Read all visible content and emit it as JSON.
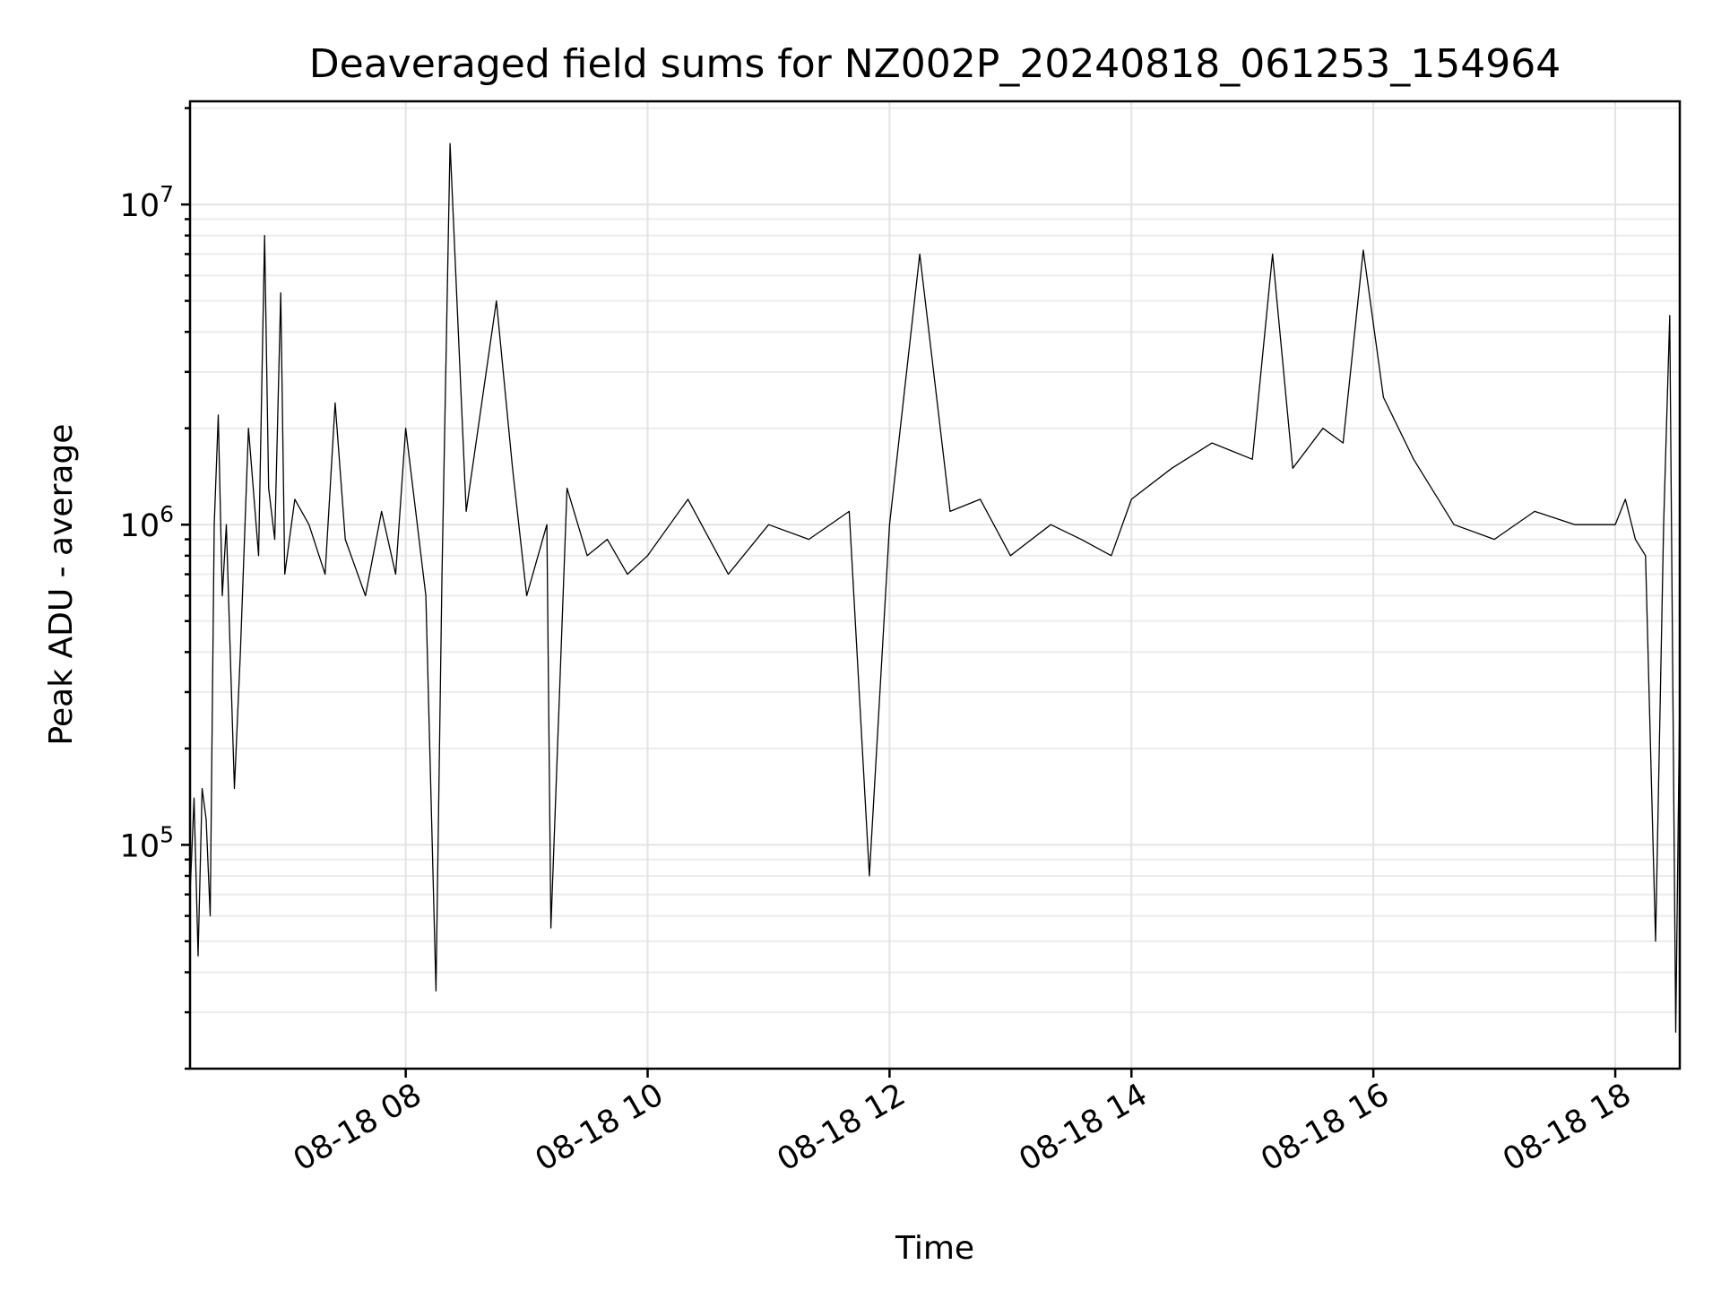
{
  "chart_data": {
    "type": "line",
    "title": "Deaveraged field sums for NZ002P_20240818_061253_154964",
    "xlabel": "Time",
    "ylabel": "Peak ADU - average",
    "yscale": "log",
    "ylim": [
      20000,
      21000000
    ],
    "xlim": [
      "2024-08-18 06:13",
      "2024-08-18 18:32"
    ],
    "grid": true,
    "legend": "none",
    "line_color": "#000000",
    "x_ticks": [
      "08-18 08",
      "08-18 10",
      "08-18 12",
      "08-18 14",
      "08-18 16",
      "08-18 18"
    ],
    "y_ticks": [
      {
        "base": "10",
        "exp": "5",
        "value": 100000
      },
      {
        "base": "10",
        "exp": "6",
        "value": 1000000
      },
      {
        "base": "10",
        "exp": "7",
        "value": 10000000
      }
    ],
    "series": [
      {
        "x": [
          "2024-08-18 06:13",
          "2024-08-18 06:15",
          "2024-08-18 06:17",
          "2024-08-18 06:19",
          "2024-08-18 06:21",
          "2024-08-18 06:23",
          "2024-08-18 06:25",
          "2024-08-18 06:27",
          "2024-08-18 06:29",
          "2024-08-18 06:31",
          "2024-08-18 06:35",
          "2024-08-18 06:38",
          "2024-08-18 06:42",
          "2024-08-18 06:47",
          "2024-08-18 06:50",
          "2024-08-18 06:52",
          "2024-08-18 06:55",
          "2024-08-18 06:58",
          "2024-08-18 07:00",
          "2024-08-18 07:05",
          "2024-08-18 07:12",
          "2024-08-18 07:20",
          "2024-08-18 07:25",
          "2024-08-18 07:30",
          "2024-08-18 07:40",
          "2024-08-18 07:48",
          "2024-08-18 07:55",
          "2024-08-18 08:00",
          "2024-08-18 08:10",
          "2024-08-18 08:15",
          "2024-08-18 08:18",
          "2024-08-18 08:22",
          "2024-08-18 08:30",
          "2024-08-18 08:45",
          "2024-08-18 08:53",
          "2024-08-18 09:00",
          "2024-08-18 09:10",
          "2024-08-18 09:12",
          "2024-08-18 09:20",
          "2024-08-18 09:30",
          "2024-08-18 09:40",
          "2024-08-18 09:50",
          "2024-08-18 10:00",
          "2024-08-18 10:20",
          "2024-08-18 10:40",
          "2024-08-18 11:00",
          "2024-08-18 11:20",
          "2024-08-18 11:40",
          "2024-08-18 11:50",
          "2024-08-18 12:00",
          "2024-08-18 12:15",
          "2024-08-18 12:30",
          "2024-08-18 12:45",
          "2024-08-18 13:00",
          "2024-08-18 13:20",
          "2024-08-18 13:35",
          "2024-08-18 13:50",
          "2024-08-18 14:00",
          "2024-08-18 14:20",
          "2024-08-18 14:40",
          "2024-08-18 15:00",
          "2024-08-18 15:10",
          "2024-08-18 15:20",
          "2024-08-18 15:35",
          "2024-08-18 15:45",
          "2024-08-18 15:55",
          "2024-08-18 16:05",
          "2024-08-18 16:20",
          "2024-08-18 16:40",
          "2024-08-18 17:00",
          "2024-08-18 17:20",
          "2024-08-18 17:40",
          "2024-08-18 18:00",
          "2024-08-18 18:05",
          "2024-08-18 18:10",
          "2024-08-18 18:15",
          "2024-08-18 18:20",
          "2024-08-18 18:24",
          "2024-08-18 18:27",
          "2024-08-18 18:30",
          "2024-08-18 18:32"
        ],
        "y": [
          70000,
          140000,
          45000,
          150000,
          120000,
          60000,
          1000000,
          2200000,
          600000,
          1000000,
          150000,
          400000,
          2000000,
          800000,
          8000000,
          1300000,
          900000,
          5300000,
          700000,
          1200000,
          1000000,
          700000,
          2400000,
          900000,
          600000,
          1100000,
          700000,
          2000000,
          600000,
          35000,
          700000,
          15500000,
          1100000,
          5000000,
          1500000,
          600000,
          1000000,
          55000,
          1300000,
          800000,
          900000,
          700000,
          800000,
          1200000,
          700000,
          1000000,
          900000,
          1100000,
          80000,
          1000000,
          7000000,
          1100000,
          1200000,
          800000,
          1000000,
          900000,
          800000,
          1200000,
          1500000,
          1800000,
          1600000,
          7000000,
          1500000,
          2000000,
          1800000,
          7200000,
          2500000,
          1600000,
          1000000,
          900000,
          1100000,
          1000000,
          1000000,
          1200000,
          900000,
          800000,
          50000,
          1000000,
          4500000,
          26000,
          300000
        ]
      }
    ]
  }
}
